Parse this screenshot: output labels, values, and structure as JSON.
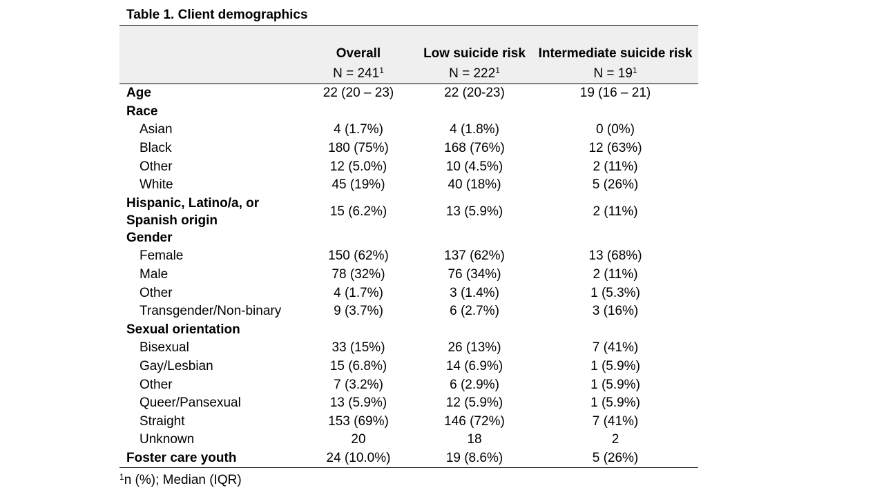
{
  "table": {
    "title": "Table 1. Client demographics",
    "columns": [
      {
        "name": "",
        "n": ""
      },
      {
        "name": "Overall",
        "n": "N = 241",
        "n_sup": "1"
      },
      {
        "name": "Low suicide risk",
        "n": "N = 222",
        "n_sup": "1"
      },
      {
        "name": "Intermediate suicide risk",
        "n": "N = 19",
        "n_sup": "1"
      }
    ],
    "rows": [
      {
        "label": "Age",
        "type": "header",
        "values": [
          "22 (20 – 23)",
          "22 (20-23)",
          "19 (16 – 21)"
        ]
      },
      {
        "label": "Race",
        "type": "header",
        "values": [
          "",
          "",
          ""
        ]
      },
      {
        "label": "Asian",
        "type": "sub",
        "values": [
          "4 (1.7%)",
          "4 (1.8%)",
          "0 (0%)"
        ]
      },
      {
        "label": "Black",
        "type": "sub",
        "values": [
          "180 (75%)",
          "168 (76%)",
          "12 (63%)"
        ]
      },
      {
        "label": "Other",
        "type": "sub",
        "values": [
          "12 (5.0%)",
          "10 (4.5%)",
          "2 (11%)"
        ]
      },
      {
        "label": "White",
        "type": "sub",
        "values": [
          "45 (19%)",
          "40 (18%)",
          "5 (26%)"
        ]
      },
      {
        "label": "Hispanic, Latino/a, or Spanish origin",
        "type": "header-tall",
        "values": [
          "15 (6.2%)",
          "13 (5.9%)",
          "2 (11%)"
        ]
      },
      {
        "label": "Gender",
        "type": "header",
        "values": [
          "",
          "",
          ""
        ]
      },
      {
        "label": "Female",
        "type": "sub",
        "values": [
          "150 (62%)",
          "137 (62%)",
          "13 (68%)"
        ]
      },
      {
        "label": "Male",
        "type": "sub",
        "values": [
          "78 (32%)",
          "76 (34%)",
          "2 (11%)"
        ]
      },
      {
        "label": "Other",
        "type": "sub",
        "values": [
          "4 (1.7%)",
          "3 (1.4%)",
          "1 (5.3%)"
        ]
      },
      {
        "label": "Transgender/Non-binary",
        "type": "sub",
        "values": [
          "9 (3.7%)",
          "6 (2.7%)",
          "3 (16%)"
        ]
      },
      {
        "label": "Sexual orientation",
        "type": "header",
        "values": [
          "",
          "",
          ""
        ]
      },
      {
        "label": "Bisexual",
        "type": "sub",
        "values": [
          "33 (15%)",
          "26 (13%)",
          "7 (41%)"
        ]
      },
      {
        "label": "Gay/Lesbian",
        "type": "sub",
        "values": [
          "15 (6.8%)",
          "14 (6.9%)",
          "1 (5.9%)"
        ]
      },
      {
        "label": "Other",
        "type": "sub",
        "values": [
          "7 (3.2%)",
          "6 (2.9%)",
          "1 (5.9%)"
        ]
      },
      {
        "label": "Queer/Pansexual",
        "type": "sub",
        "values": [
          "13 (5.9%)",
          "12 (5.9%)",
          "1 (5.9%)"
        ]
      },
      {
        "label": "Straight",
        "type": "sub",
        "values": [
          "153 (69%)",
          "146 (72%)",
          "7 (41%)"
        ]
      },
      {
        "label": "Unknown",
        "type": "sub",
        "values": [
          "20",
          "18",
          "2"
        ]
      },
      {
        "label": "Foster care youth",
        "type": "header",
        "values": [
          "24 (10.0%)",
          "19 (8.6%)",
          "5 (26%)"
        ]
      }
    ],
    "footnote": {
      "sup": "1",
      "text": "n (%); Median (IQR)"
    }
  }
}
